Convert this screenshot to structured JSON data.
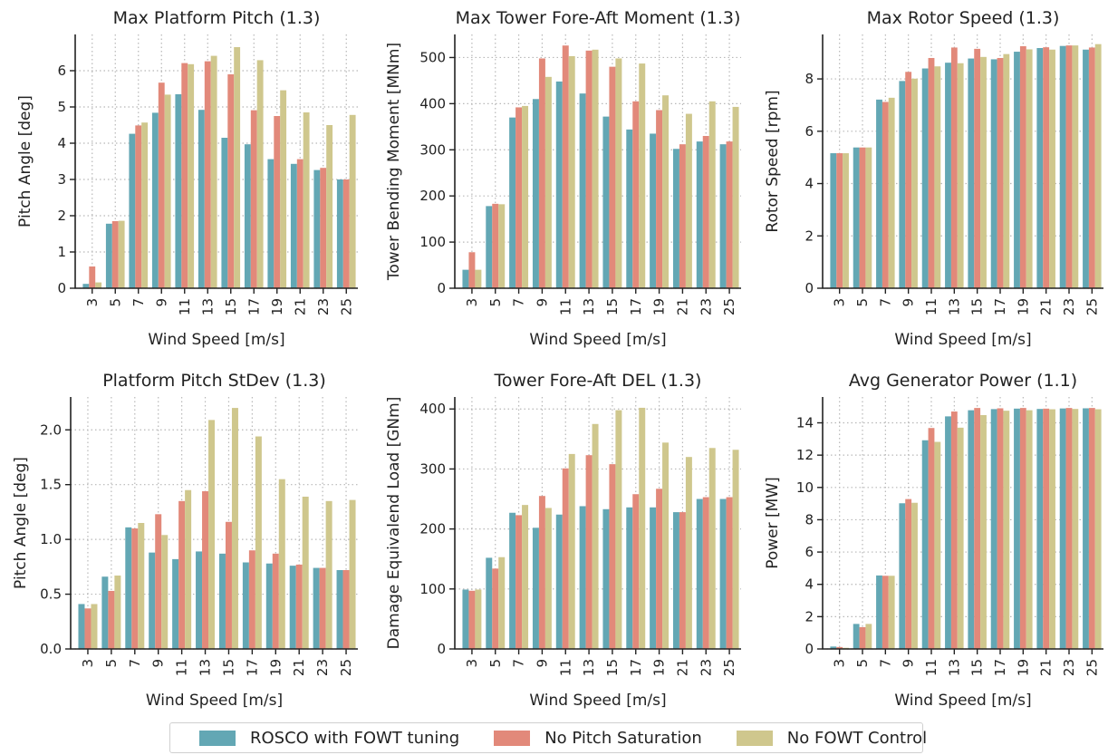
{
  "colors": {
    "series": [
      "#63a7b4",
      "#e2897a",
      "#cfc78d"
    ],
    "grid": "#b8b8b8",
    "axis": "#222222"
  },
  "legend": {
    "placement": "bottom-center",
    "items": [
      {
        "label": "ROSCO with FOWT tuning",
        "color": "#63a7b4"
      },
      {
        "label": "No Pitch Saturation",
        "color": "#e2897a"
      },
      {
        "label": "No FOWT Control",
        "color": "#cfc78d"
      }
    ]
  },
  "chart_data": [
    {
      "type": "bar",
      "title": "Max Platform Pitch (1.3)",
      "xlabel": "Wind Speed [m/s]",
      "ylabel": "Pitch Angle [deg]",
      "categories": [
        "3",
        "5",
        "7",
        "9",
        "11",
        "13",
        "15",
        "17",
        "19",
        "21",
        "23",
        "25"
      ],
      "ylim": [
        0,
        7
      ],
      "yticks": [
        0,
        1,
        2,
        3,
        4,
        5,
        6
      ],
      "grid": true,
      "series": [
        {
          "name": "ROSCO with FOWT tuning",
          "values": [
            0.12,
            1.78,
            4.26,
            4.84,
            5.35,
            4.92,
            4.15,
            3.97,
            3.56,
            3.43,
            3.26,
            3.0
          ]
        },
        {
          "name": "No Pitch Saturation",
          "values": [
            0.6,
            1.85,
            4.49,
            5.67,
            6.21,
            6.26,
            5.9,
            4.91,
            4.75,
            3.56,
            3.32,
            3.0
          ]
        },
        {
          "name": "No FOWT Control",
          "values": [
            0.16,
            1.86,
            4.57,
            5.34,
            6.18,
            6.41,
            6.65,
            6.29,
            5.46,
            4.85,
            4.5,
            4.78
          ]
        }
      ]
    },
    {
      "type": "bar",
      "title": "Max Tower Fore-Aft Moment (1.3)",
      "xlabel": "Wind Speed [m/s]",
      "ylabel": "Tower Bending Moment [MNm]",
      "categories": [
        "3",
        "5",
        "7",
        "9",
        "11",
        "13",
        "15",
        "17",
        "19",
        "21",
        "23",
        "25"
      ],
      "ylim": [
        0,
        550
      ],
      "yticks": [
        0,
        100,
        200,
        300,
        400,
        500
      ],
      "grid": true,
      "series": [
        {
          "name": "ROSCO with FOWT tuning",
          "values": [
            40,
            178,
            370,
            410,
            448,
            422,
            372,
            344,
            335,
            302,
            318,
            312
          ]
        },
        {
          "name": "No Pitch Saturation",
          "values": [
            78,
            183,
            392,
            498,
            526,
            515,
            480,
            405,
            386,
            312,
            330,
            318
          ]
        },
        {
          "name": "No FOWT Control",
          "values": [
            40,
            182,
            395,
            458,
            503,
            517,
            498,
            487,
            418,
            378,
            405,
            393
          ]
        }
      ]
    },
    {
      "type": "bar",
      "title": "Max Rotor Speed (1.3)",
      "xlabel": "Wind Speed [m/s]",
      "ylabel": "Rotor Speed [rpm]",
      "categories": [
        "3",
        "5",
        "7",
        "9",
        "11",
        "13",
        "15",
        "17",
        "19",
        "21",
        "23",
        "25"
      ],
      "ylim": [
        0,
        9.7
      ],
      "yticks": [
        0,
        2,
        4,
        6,
        8
      ],
      "grid": true,
      "series": [
        {
          "name": "ROSCO with FOWT tuning",
          "values": [
            5.16,
            5.38,
            7.21,
            7.92,
            8.4,
            8.62,
            8.78,
            8.75,
            9.04,
            9.18,
            9.26,
            9.12
          ]
        },
        {
          "name": "No Pitch Saturation",
          "values": [
            5.16,
            5.38,
            7.12,
            8.27,
            8.8,
            9.2,
            9.15,
            8.8,
            9.25,
            9.21,
            9.28,
            9.2
          ]
        },
        {
          "name": "No FOWT Control",
          "values": [
            5.16,
            5.38,
            7.28,
            8.01,
            8.48,
            8.6,
            8.84,
            8.95,
            9.13,
            9.12,
            9.28,
            9.33
          ]
        }
      ]
    },
    {
      "type": "bar",
      "title": "Platform Pitch StDev (1.3)",
      "xlabel": "Wind Speed [m/s]",
      "ylabel": "Pitch Angle [deg]",
      "categories": [
        "3",
        "5",
        "7",
        "9",
        "11",
        "13",
        "15",
        "17",
        "19",
        "21",
        "23",
        "25"
      ],
      "ylim": [
        0,
        2.3
      ],
      "yticks": [
        0.0,
        0.5,
        1.0,
        1.5,
        2.0
      ],
      "tick_labels": [
        "0.0",
        "0.5",
        "1.0",
        "1.5",
        "2.0"
      ],
      "grid": true,
      "series": [
        {
          "name": "ROSCO with FOWT tuning",
          "values": [
            0.41,
            0.66,
            1.11,
            0.88,
            0.82,
            0.89,
            0.87,
            0.79,
            0.78,
            0.76,
            0.74,
            0.72
          ]
        },
        {
          "name": "No Pitch Saturation",
          "values": [
            0.37,
            0.53,
            1.1,
            1.23,
            1.35,
            1.44,
            1.16,
            0.9,
            0.87,
            0.77,
            0.74,
            0.72
          ]
        },
        {
          "name": "No FOWT Control",
          "values": [
            0.41,
            0.67,
            1.15,
            1.04,
            1.45,
            2.09,
            2.2,
            1.94,
            1.55,
            1.39,
            1.35,
            1.36
          ]
        }
      ]
    },
    {
      "type": "bar",
      "title": "Tower Fore-Aft DEL (1.3)",
      "xlabel": "Wind Speed [m/s]",
      "ylabel": "Damage Equivalend Load [GNm]",
      "categories": [
        "3",
        "5",
        "7",
        "9",
        "11",
        "13",
        "15",
        "17",
        "19",
        "21",
        "23",
        "25"
      ],
      "ylim": [
        0,
        420
      ],
      "yticks": [
        0,
        100,
        200,
        300,
        400
      ],
      "grid": true,
      "series": [
        {
          "name": "ROSCO with FOWT tuning",
          "values": [
            99,
            152,
            227,
            202,
            224,
            238,
            233,
            236,
            236,
            228,
            250,
            250
          ]
        },
        {
          "name": "No Pitch Saturation",
          "values": [
            97,
            134,
            223,
            255,
            301,
            323,
            308,
            258,
            267,
            228,
            253,
            253
          ]
        },
        {
          "name": "No FOWT Control",
          "values": [
            99,
            153,
            240,
            235,
            325,
            375,
            398,
            402,
            344,
            320,
            335,
            332
          ]
        }
      ]
    },
    {
      "type": "bar",
      "title": "Avg Generator Power (1.1)",
      "xlabel": "Wind Speed [m/s]",
      "ylabel": "Power [MW]",
      "categories": [
        "3",
        "5",
        "7",
        "9",
        "11",
        "13",
        "15",
        "17",
        "19",
        "21",
        "23",
        "25"
      ],
      "ylim": [
        0,
        15.6
      ],
      "yticks": [
        0,
        2,
        4,
        6,
        8,
        10,
        12,
        14
      ],
      "grid": true,
      "series": [
        {
          "name": "ROSCO with FOWT tuning",
          "values": [
            0.15,
            1.55,
            4.55,
            9.02,
            12.92,
            14.4,
            14.78,
            14.85,
            14.88,
            14.86,
            14.89,
            14.9
          ]
        },
        {
          "name": "No Pitch Saturation",
          "values": [
            0.12,
            1.35,
            4.53,
            9.28,
            13.68,
            14.7,
            14.92,
            14.9,
            14.92,
            14.88,
            14.92,
            14.92
          ]
        },
        {
          "name": "No FOWT Control",
          "values": [
            0.07,
            1.55,
            4.53,
            9.05,
            12.82,
            13.7,
            14.48,
            14.75,
            14.78,
            14.84,
            14.86,
            14.84
          ]
        }
      ]
    }
  ]
}
